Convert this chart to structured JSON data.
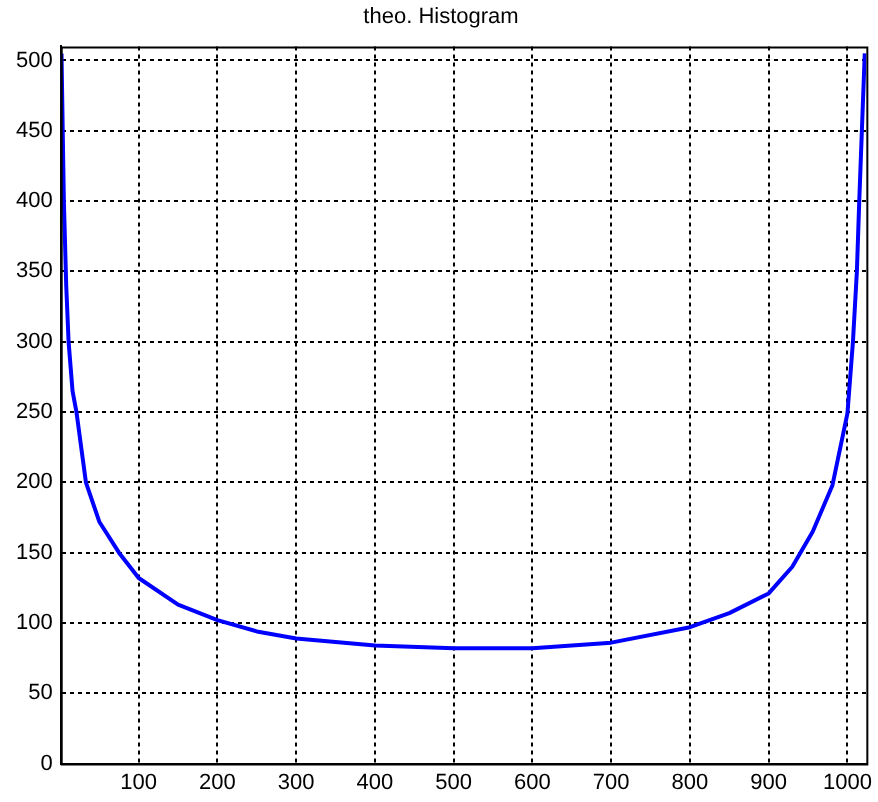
{
  "chart_data": {
    "type": "line",
    "title": "theo. Histogram",
    "x": [
      2,
      5,
      8,
      11,
      16,
      21,
      33,
      50,
      75,
      100,
      150,
      200,
      250,
      300,
      400,
      500,
      600,
      700,
      800,
      850,
      900,
      930,
      956,
      981,
      1000,
      1007,
      1012,
      1015,
      1019,
      1022
    ],
    "series": [
      {
        "color": "#0000ff",
        "values": [
          505,
          400,
          340,
          300,
          265,
          250,
          200,
          172,
          150,
          132,
          113,
          102,
          94,
          89,
          84,
          82,
          82,
          86,
          97,
          107,
          121,
          140,
          165,
          198,
          249,
          300,
          350,
          400,
          460,
          505
        ]
      }
    ],
    "xlim": [
      1,
      1024
    ],
    "xticks": [
      100,
      200,
      300,
      400,
      500,
      600,
      700,
      800,
      900,
      1000
    ],
    "ylim": [
      0,
      510
    ],
    "yticks": [
      0,
      50,
      100,
      150,
      200,
      250,
      300,
      350,
      400,
      450,
      500
    ],
    "grid": true,
    "legend": false,
    "marker": "none",
    "line_style": "solid"
  }
}
